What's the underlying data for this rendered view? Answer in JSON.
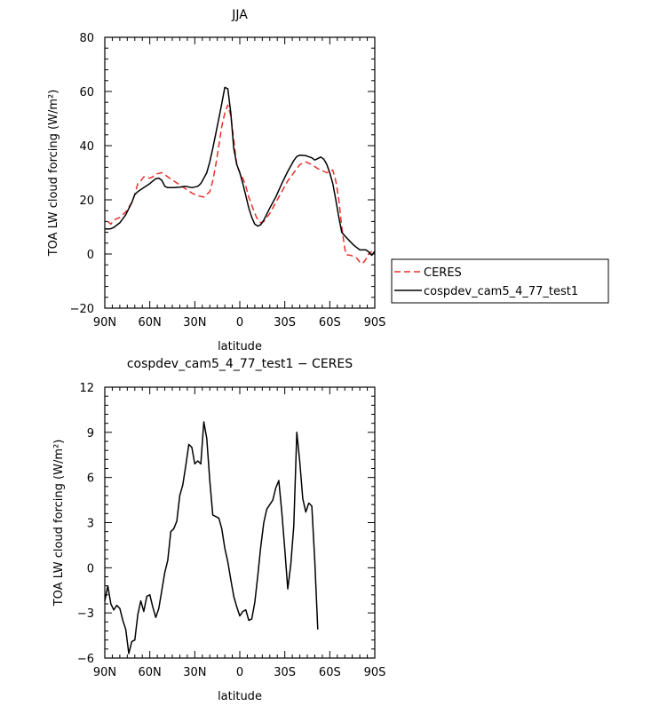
{
  "chart_data": [
    {
      "type": "line",
      "title": "JJA",
      "xlabel": "latitude",
      "ylabel": "TOA LW cloud forcing (W/m²)",
      "xlim": [
        90,
        -90
      ],
      "ylim": [
        -20,
        80
      ],
      "x_ticks": [
        90,
        60,
        30,
        0,
        -30,
        -60,
        -90
      ],
      "x_tick_labels": [
        "90N",
        "60N",
        "30N",
        "0",
        "30S",
        "60S",
        "90S"
      ],
      "y_ticks": [
        -20,
        0,
        20,
        40,
        60,
        80
      ],
      "y_tick_labels": [
        "−20",
        "0",
        "20",
        "40",
        "60",
        "80"
      ],
      "legend": "right, outside",
      "series": [
        {
          "name": "CERES",
          "color": "#e8302a",
          "dash": "dashed",
          "points": [
            [
              88,
              12
            ],
            [
              86,
              11
            ],
            [
              84,
              12.5
            ],
            [
              80,
              13.5
            ],
            [
              76,
              15.5
            ],
            [
              72,
              19
            ],
            [
              70,
              22
            ],
            [
              68,
              26
            ],
            [
              66,
              27
            ],
            [
              64,
              28.5
            ],
            [
              60,
              28
            ],
            [
              58,
              28.5
            ],
            [
              56,
              29.5
            ],
            [
              52,
              30
            ],
            [
              48,
              28.5
            ],
            [
              44,
              27
            ],
            [
              40,
              25.5
            ],
            [
              36,
              24
            ],
            [
              32,
              22.5
            ],
            [
              28,
              21.5
            ],
            [
              24,
              21
            ],
            [
              20,
              23
            ],
            [
              18,
              27
            ],
            [
              16,
              33
            ],
            [
              14,
              40
            ],
            [
              12,
              47
            ],
            [
              10,
              52
            ],
            [
              8,
              55
            ],
            [
              6,
              51
            ],
            [
              4,
              42
            ],
            [
              2,
              33
            ],
            [
              0,
              30
            ],
            [
              -2,
              28
            ],
            [
              -4,
              25
            ],
            [
              -6,
              21
            ],
            [
              -8,
              18
            ],
            [
              -10,
              15
            ],
            [
              -12,
              12.5
            ],
            [
              -14,
              11.5
            ],
            [
              -16,
              12
            ],
            [
              -20,
              15
            ],
            [
              -24,
              19
            ],
            [
              -28,
              23
            ],
            [
              -32,
              27
            ],
            [
              -36,
              30
            ],
            [
              -40,
              33
            ],
            [
              -44,
              34
            ],
            [
              -48,
              33
            ],
            [
              -52,
              31.5
            ],
            [
              -56,
              30.5
            ],
            [
              -58,
              30
            ],
            [
              -60,
              30.5
            ],
            [
              -62,
              31
            ],
            [
              -64,
              27
            ],
            [
              -66,
              20
            ],
            [
              -68,
              10
            ],
            [
              -70,
              2
            ],
            [
              -71,
              -0.3
            ],
            [
              -74,
              -0.5
            ],
            [
              -78,
              -1.5
            ],
            [
              -80,
              -3
            ],
            [
              -82,
              -3.5
            ],
            [
              -84,
              -2
            ],
            [
              -86,
              0
            ],
            [
              -88,
              1
            ]
          ]
        },
        {
          "name": "cospdev_cam5_4_77_test1",
          "color": "#000000",
          "dash": "solid",
          "points": [
            [
              90,
              9.3
            ],
            [
              88,
              9.2
            ],
            [
              86,
              9.3
            ],
            [
              84,
              9.8
            ],
            [
              80,
              11.5
            ],
            [
              76,
              14.5
            ],
            [
              72,
              19
            ],
            [
              70,
              22
            ],
            [
              68,
              23
            ],
            [
              64,
              24.5
            ],
            [
              60,
              26
            ],
            [
              56,
              27.8
            ],
            [
              54,
              28
            ],
            [
              52,
              27.2
            ],
            [
              50,
              25
            ],
            [
              48,
              24.5
            ],
            [
              44,
              24.5
            ],
            [
              40,
              24.7
            ],
            [
              36,
              25
            ],
            [
              32,
              24.5
            ],
            [
              28,
              25
            ],
            [
              26,
              26
            ],
            [
              24,
              28
            ],
            [
              22,
              30
            ],
            [
              20,
              34
            ],
            [
              18,
              39
            ],
            [
              16,
              44.5
            ],
            [
              14,
              50
            ],
            [
              12,
              55.5
            ],
            [
              10,
              61.5
            ],
            [
              8,
              61
            ],
            [
              6,
              52
            ],
            [
              4,
              39
            ],
            [
              2,
              33
            ],
            [
              0,
              30
            ],
            [
              -2,
              26
            ],
            [
              -4,
              21.5
            ],
            [
              -6,
              17
            ],
            [
              -8,
              13.5
            ],
            [
              -10,
              11
            ],
            [
              -12,
              10.3
            ],
            [
              -14,
              10.8
            ],
            [
              -16,
              12.5
            ],
            [
              -20,
              17
            ],
            [
              -24,
              21
            ],
            [
              -28,
              26
            ],
            [
              -32,
              30.5
            ],
            [
              -36,
              34.5
            ],
            [
              -38,
              36
            ],
            [
              -40,
              36.5
            ],
            [
              -44,
              36.3
            ],
            [
              -48,
              35.5
            ],
            [
              -50,
              34.7
            ],
            [
              -52,
              35.2
            ],
            [
              -54,
              35.8
            ],
            [
              -56,
              35
            ],
            [
              -58,
              33
            ],
            [
              -60,
              30
            ],
            [
              -62,
              26
            ],
            [
              -64,
              20
            ],
            [
              -66,
              13.5
            ],
            [
              -68,
              8
            ],
            [
              -72,
              5.5
            ],
            [
              -76,
              3.2
            ],
            [
              -80,
              1.5
            ],
            [
              -84,
              1.5
            ],
            [
              -86,
              0.8
            ],
            [
              -88,
              -0.5
            ],
            [
              -90,
              1
            ]
          ]
        }
      ]
    },
    {
      "type": "line",
      "title": "cospdev_cam5_4_77_test1 − CERES",
      "xlabel": "latitude",
      "ylabel": "TOA LW cloud forcing (W/m²)",
      "xlim": [
        90,
        -90
      ],
      "ylim": [
        -6,
        12
      ],
      "x_ticks": [
        90,
        60,
        30,
        0,
        -30,
        -60,
        -90
      ],
      "x_tick_labels": [
        "90N",
        "60N",
        "30N",
        "0",
        "30S",
        "60S",
        "90S"
      ],
      "y_ticks": [
        -6,
        -3,
        0,
        3,
        6,
        9,
        12
      ],
      "y_tick_labels": [
        "−6",
        "−3",
        "0",
        "3",
        "6",
        "9",
        "12"
      ],
      "series": [
        {
          "color": "#000000",
          "dash": "solid",
          "points": [
            [
              90,
              -2.2
            ],
            [
              88,
              -1.2
            ],
            [
              86,
              -2.4
            ],
            [
              84,
              -2.8
            ],
            [
              82,
              -2.5
            ],
            [
              80,
              -2.7
            ],
            [
              78,
              -3.5
            ],
            [
              76,
              -4.1
            ],
            [
              74,
              -5.7
            ],
            [
              72,
              -4.9
            ],
            [
              70,
              -4.8
            ],
            [
              68,
              -3.1
            ],
            [
              66,
              -2.2
            ],
            [
              64,
              -2.9
            ],
            [
              62,
              -1.9
            ],
            [
              60,
              -1.8
            ],
            [
              58,
              -2.6
            ],
            [
              56,
              -3.3
            ],
            [
              54,
              -2.7
            ],
            [
              52,
              -1.5
            ],
            [
              50,
              -0.3
            ],
            [
              48,
              0.5
            ],
            [
              46,
              2.4
            ],
            [
              44,
              2.6
            ],
            [
              42,
              3.1
            ],
            [
              40,
              4.8
            ],
            [
              38,
              5.5
            ],
            [
              36,
              6.8
            ],
            [
              34,
              8.2
            ],
            [
              32,
              8.0
            ],
            [
              30,
              6.9
            ],
            [
              28,
              7.1
            ],
            [
              26,
              6.9
            ],
            [
              24,
              9.7
            ],
            [
              22,
              8.6
            ],
            [
              20,
              5.8
            ],
            [
              18,
              3.5
            ],
            [
              16,
              3.4
            ],
            [
              14,
              3.3
            ],
            [
              12,
              2.6
            ],
            [
              10,
              1.3
            ],
            [
              8,
              0.4
            ],
            [
              6,
              -0.8
            ],
            [
              4,
              -1.9
            ],
            [
              2,
              -2.6
            ],
            [
              0,
              -3.2
            ],
            [
              -2,
              -2.9
            ],
            [
              -4,
              -2.8
            ],
            [
              -6,
              -3.5
            ],
            [
              -8,
              -3.4
            ],
            [
              -10,
              -2.3
            ],
            [
              -12,
              -0.5
            ],
            [
              -14,
              1.4
            ],
            [
              -16,
              3.0
            ],
            [
              -18,
              3.9
            ],
            [
              -20,
              4.2
            ],
            [
              -22,
              4.5
            ],
            [
              -24,
              5.3
            ],
            [
              -26,
              5.8
            ],
            [
              -28,
              3.7
            ],
            [
              -30,
              1.2
            ],
            [
              -32,
              -1.4
            ],
            [
              -34,
              0.2
            ],
            [
              -36,
              2.8
            ],
            [
              -38,
              9.0
            ],
            [
              -40,
              7.0
            ],
            [
              -42,
              4.6
            ],
            [
              -44,
              3.7
            ],
            [
              -46,
              4.3
            ],
            [
              -48,
              4.1
            ],
            [
              -50,
              0.5
            ],
            [
              -52,
              -4.1
            ]
          ]
        }
      ]
    }
  ]
}
